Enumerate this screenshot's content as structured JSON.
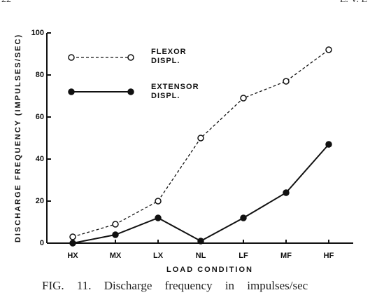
{
  "header_left": "22",
  "header_right": "E. V. E",
  "caption": "FIG. 11. Discharge frequency in impulses/sec",
  "chart_data": {
    "type": "line",
    "x_label": "LOAD CONDITION",
    "y_label": "DISCHARGE FREQUENCY (IMPULSES/SEC)",
    "categories": [
      "HX",
      "MX",
      "LX",
      "NL",
      "LF",
      "MF",
      "HF"
    ],
    "series": [
      {
        "name": "FLEXOR DISPL.",
        "color": "#111111",
        "dashed": true,
        "marker": "open",
        "values": [
          3,
          9,
          20,
          50,
          69,
          77,
          92
        ]
      },
      {
        "name": "EXTENSOR DISPL.",
        "color": "#111111",
        "dashed": false,
        "marker": "filled",
        "values": [
          0,
          4,
          12,
          1,
          12,
          24,
          47
        ]
      }
    ],
    "ylim": [
      0,
      100
    ],
    "yticks": [
      0,
      20,
      40,
      60,
      80,
      100
    ]
  }
}
